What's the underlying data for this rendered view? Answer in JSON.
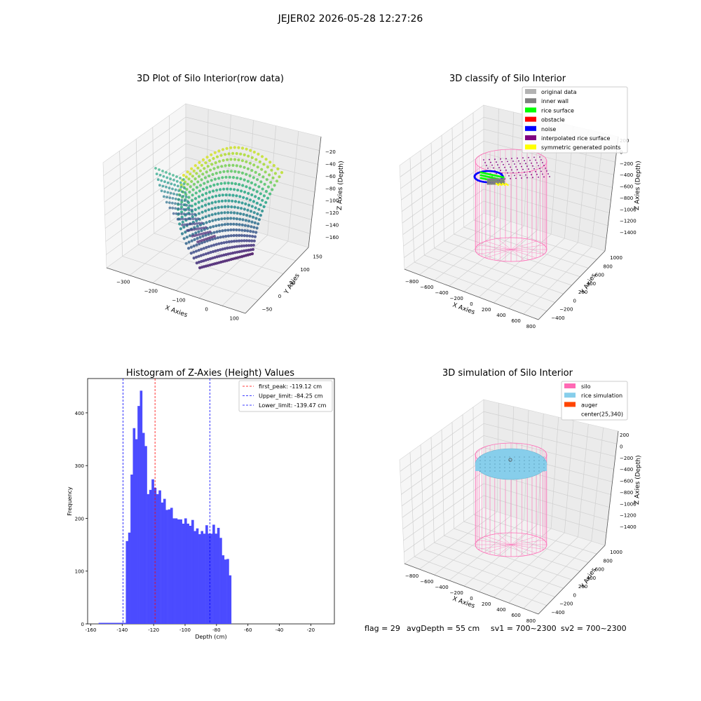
{
  "figure": {
    "suptitle": "JEJER02 2026-05-28 12:27:26",
    "status": {
      "flag": "flag = 29",
      "avg_depth": "avgDepth = 55 cm",
      "sv1": "sv1 = 700~2300",
      "sv2": "sv2 = 700~2300"
    }
  },
  "chart_data": [
    {
      "type": "scatter",
      "title": "3D Plot of Silo Interior(row data)",
      "xlabel": "X Axies",
      "ylabel": "Y Axies",
      "zlabel": "Z Axies (Depth)",
      "x_ticks": [
        "−300",
        "−200",
        "−100",
        "0",
        "100"
      ],
      "y_ticks": [
        "−50",
        "0",
        "50",
        "100",
        "150"
      ],
      "z_ticks": [
        "−20",
        "−40",
        "−60",
        "−80",
        "−100",
        "−120",
        "−140",
        "−160"
      ],
      "colormap": "viridis"
    },
    {
      "type": "scatter",
      "title": "3D classify of Silo Interior",
      "xlabel": "X Axies",
      "ylabel": "Y Axies",
      "zlabel": "Z Axies (Depth)",
      "x_ticks": [
        "−800",
        "−600",
        "−400",
        "−200",
        "0",
        "200",
        "400",
        "600",
        "800"
      ],
      "y_ticks": [
        "−400",
        "−200",
        "0",
        "200",
        "400",
        "600",
        "800",
        "1000"
      ],
      "z_ticks": [
        "200",
        "0",
        "−200",
        "−400",
        "−600",
        "−800",
        "−1000",
        "−1200",
        "−1400"
      ],
      "legend_position": "top-right",
      "legend": [
        {
          "label": "original data",
          "color": "#b3b3b3"
        },
        {
          "label": "inner wall",
          "color": "#808080"
        },
        {
          "label": "rice surface",
          "color": "#00ff00"
        },
        {
          "label": "obstacle",
          "color": "#ff0000"
        },
        {
          "label": "noise",
          "color": "#0000ff"
        },
        {
          "label": "interpolated rice surface",
          "color": "#800080"
        },
        {
          "label": "symmetric generated points",
          "color": "#ffff00"
        }
      ]
    },
    {
      "type": "bar",
      "title": "Histogram of Z-Axies (Height) Values",
      "xlabel": "Depth (cm)",
      "ylabel": "Frequency",
      "xlim": [
        -162,
        -5
      ],
      "ylim": [
        0,
        465
      ],
      "x_ticks": [
        -160,
        -140,
        -120,
        -100,
        -80,
        -60,
        -40,
        -20
      ],
      "y_ticks": [
        0,
        100,
        200,
        300,
        400
      ],
      "bar_color": "#4b4bff",
      "bin_width": 1.49,
      "bins_start": [
        -155,
        -153.5,
        -152,
        -150.5,
        -149,
        -147.5,
        -146,
        -144.5,
        -143,
        -141.5,
        -140,
        -138.5,
        -137,
        -135.5,
        -134,
        -132.5,
        -131,
        -129.5,
        -128,
        -126.5,
        -125,
        -123.5,
        -122,
        -120.5,
        -119,
        -117.5,
        -116,
        -114.5,
        -113,
        -111.5,
        -110,
        -108.5,
        -107,
        -105.5,
        -104,
        -102.5,
        -101,
        -99.5,
        -98,
        -96.5,
        -95,
        -93.5,
        -92,
        -90.5,
        -89,
        -87.5,
        -86,
        -84.5,
        -83,
        -81.5,
        -80,
        -78.5,
        -77,
        -75.5,
        -74,
        -72.5,
        -71,
        -69.5,
        -68,
        -66.5,
        -65,
        -63.5,
        -62,
        -60.5,
        -59,
        -57.5,
        -56,
        -54.5,
        -53,
        -51.5,
        -50,
        -48.5,
        -47,
        -45.5,
        -44,
        -42.5,
        -41,
        -39.5,
        -38,
        -36.5,
        -35,
        -33.5,
        -32,
        -30.5,
        -29,
        -27.5,
        -26,
        -24.5,
        -23,
        -21.5,
        -20,
        -18.5,
        -17,
        -15.5,
        -14,
        -12.5,
        -11
      ],
      "values": [
        2,
        2,
        2,
        2,
        2,
        2,
        2,
        2,
        2,
        2,
        2,
        2,
        2,
        2,
        2,
        2,
        2,
        2,
        2,
        2,
        2,
        2,
        2,
        2,
        2,
        2,
        2,
        2,
        2,
        2,
        2,
        2,
        2,
        2,
        2,
        2,
        2,
        2,
        2,
        2,
        2,
        2,
        2,
        2,
        2,
        2,
        2,
        2,
        2,
        2,
        2,
        2,
        2,
        2,
        2,
        2,
        2,
        2,
        2,
        2,
        2,
        2,
        2,
        2,
        2,
        2,
        2,
        2,
        2,
        2,
        2,
        2,
        2,
        2,
        2,
        2,
        2,
        2,
        2,
        2,
        2,
        2,
        2,
        2,
        2,
        2,
        2,
        2,
        2,
        2,
        2,
        2,
        2,
        2,
        2,
        2,
        2
      ],
      "hist_bins": {
        "edges_start": -137.7,
        "width": 1.49,
        "counts": [
          157,
          173,
          283,
          371,
          350,
          413,
          442,
          362,
          337,
          246,
          254,
          274,
          258,
          246,
          253,
          230,
          237,
          216,
          217,
          220,
          200,
          200,
          198,
          198,
          190,
          200,
          190,
          186,
          197,
          176,
          181,
          170,
          176,
          171,
          187,
          171,
          171,
          188,
          171,
          182,
          163,
          130,
          122,
          123,
          92
        ]
      },
      "low_tail": {
        "x_start": -155,
        "x_end": -137.7,
        "value": 2
      },
      "vlines": [
        {
          "label": "first_peak: -119.12 cm",
          "x": -119.12,
          "color": "#ff0000"
        },
        {
          "label": "Upper_limit: -84.25 cm",
          "x": -84.25,
          "color": "#0000ff"
        },
        {
          "label": "Lower_limit: -139.47 cm",
          "x": -139.47,
          "color": "#0000ff"
        }
      ],
      "legend_position": "top-right"
    },
    {
      "type": "scatter",
      "title": "3D simulation of Silo Interior",
      "xlabel": "X Axies",
      "ylabel": "Y Axies",
      "zlabel": "Z Axies (Depth)",
      "x_ticks": [
        "−800",
        "−600",
        "−400",
        "−200",
        "0",
        "200",
        "400",
        "600",
        "800"
      ],
      "y_ticks": [
        "−400",
        "−200",
        "0",
        "200",
        "400",
        "600",
        "800",
        "1000"
      ],
      "z_ticks": [
        "200",
        "0",
        "−200",
        "−400",
        "−600",
        "−800",
        "−1000",
        "−1200",
        "−1400"
      ],
      "legend_position": "top-right",
      "legend": [
        {
          "label": "silo",
          "color": "#ff69b4"
        },
        {
          "label": "rice simulation",
          "color": "#87ceeb"
        },
        {
          "label": "auger",
          "color": "#ff4500"
        },
        {
          "label": "center(25,340)",
          "color": ""
        }
      ]
    }
  ]
}
